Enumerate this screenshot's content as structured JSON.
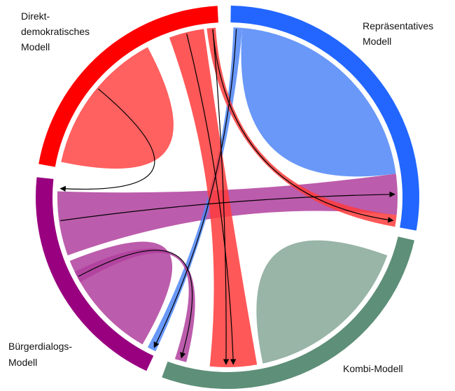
{
  "nodes": [
    {
      "label": [
        "Direkt-",
        "demokratisches",
        "Modell"
      ]
    },
    {
      "label": [
        "Repräsentatives",
        "Modell"
      ]
    },
    {
      "label": [
        "Bürgerdialogs-",
        "Modell"
      ]
    },
    {
      "label": [
        "Kombi-Modell"
      ]
    }
  ]
}
